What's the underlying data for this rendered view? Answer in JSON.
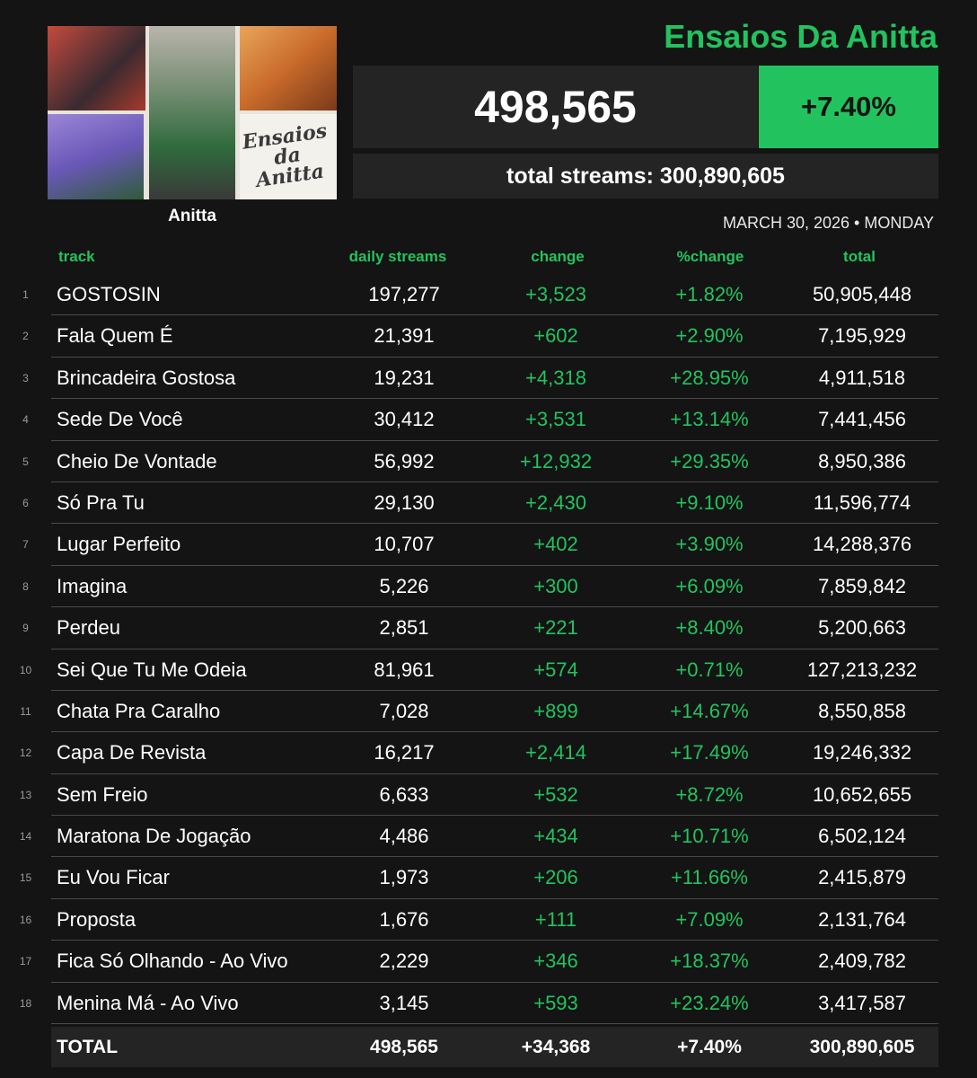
{
  "header": {
    "album_title": "Ensaios Da Anitta",
    "artist": "Anitta",
    "daily_total": "498,565",
    "daily_pct": "+7.40%",
    "total_streams": "total streams: 300,890,605",
    "date": "MARCH 30, 2026 • MONDAY",
    "cover_logo_text": "Ensaios da Anitta"
  },
  "columns": {
    "track": "track",
    "daily": "daily streams",
    "change": "change",
    "pct": "%change",
    "total": "total"
  },
  "tracks": [
    {
      "rank": "1",
      "name": "GOSTOSIN",
      "daily": "197,277",
      "change": "+3,523",
      "pct": "+1.82%",
      "total": "50,905,448"
    },
    {
      "rank": "2",
      "name": "Fala Quem É",
      "daily": "21,391",
      "change": "+602",
      "pct": "+2.90%",
      "total": "7,195,929"
    },
    {
      "rank": "3",
      "name": "Brincadeira Gostosa",
      "daily": "19,231",
      "change": "+4,318",
      "pct": "+28.95%",
      "total": "4,911,518"
    },
    {
      "rank": "4",
      "name": "Sede De Você",
      "daily": "30,412",
      "change": "+3,531",
      "pct": "+13.14%",
      "total": "7,441,456"
    },
    {
      "rank": "5",
      "name": "Cheio De Vontade",
      "daily": "56,992",
      "change": "+12,932",
      "pct": "+29.35%",
      "total": "8,950,386"
    },
    {
      "rank": "6",
      "name": "Só Pra Tu",
      "daily": "29,130",
      "change": "+2,430",
      "pct": "+9.10%",
      "total": "11,596,774"
    },
    {
      "rank": "7",
      "name": "Lugar Perfeito",
      "daily": "10,707",
      "change": "+402",
      "pct": "+3.90%",
      "total": "14,288,376"
    },
    {
      "rank": "8",
      "name": "Imagina",
      "daily": "5,226",
      "change": "+300",
      "pct": "+6.09%",
      "total": "7,859,842"
    },
    {
      "rank": "9",
      "name": "Perdeu",
      "daily": "2,851",
      "change": "+221",
      "pct": "+8.40%",
      "total": "5,200,663"
    },
    {
      "rank": "10",
      "name": "Sei Que Tu Me Odeia",
      "daily": "81,961",
      "change": "+574",
      "pct": "+0.71%",
      "total": "127,213,232"
    },
    {
      "rank": "11",
      "name": "Chata Pra Caralho",
      "daily": "7,028",
      "change": "+899",
      "pct": "+14.67%",
      "total": "8,550,858"
    },
    {
      "rank": "12",
      "name": "Capa De Revista",
      "daily": "16,217",
      "change": "+2,414",
      "pct": "+17.49%",
      "total": "19,246,332"
    },
    {
      "rank": "13",
      "name": "Sem Freio",
      "daily": "6,633",
      "change": "+532",
      "pct": "+8.72%",
      "total": "10,652,655"
    },
    {
      "rank": "14",
      "name": "Maratona De Jogação",
      "daily": "4,486",
      "change": "+434",
      "pct": "+10.71%",
      "total": "6,502,124"
    },
    {
      "rank": "15",
      "name": "Eu Vou Ficar",
      "daily": "1,973",
      "change": "+206",
      "pct": "+11.66%",
      "total": "2,415,879"
    },
    {
      "rank": "16",
      "name": "Proposta",
      "daily": "1,676",
      "change": "+111",
      "pct": "+7.09%",
      "total": "2,131,764"
    },
    {
      "rank": "17",
      "name": "Fica Só Olhando - Ao Vivo",
      "daily": "2,229",
      "change": "+346",
      "pct": "+18.37%",
      "total": "2,409,782"
    },
    {
      "rank": "18",
      "name": "Menina Má - Ao Vivo",
      "daily": "3,145",
      "change": "+593",
      "pct": "+23.24%",
      "total": "3,417,587"
    }
  ],
  "totals": {
    "label": "TOTAL",
    "daily": "498,565",
    "change": "+34,368",
    "pct": "+7.40%",
    "total": "300,890,605"
  },
  "colors": {
    "accent_green": "#22c35e",
    "background": "#141414",
    "panel": "#242424"
  }
}
